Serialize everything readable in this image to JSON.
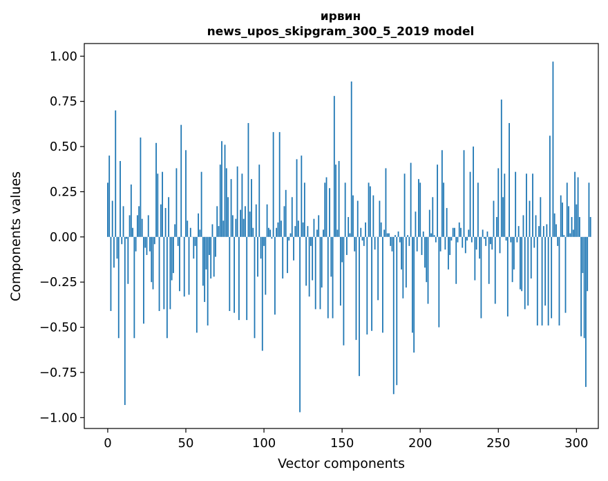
{
  "chart_data": {
    "type": "bar",
    "title": "ирвин",
    "subtitle": "news_upos_skipgram_300_5_2019 model",
    "xlabel": "Vector components",
    "ylabel": "Components values",
    "xlim": [
      -15,
      314
    ],
    "ylim": [
      -1.06,
      1.07
    ],
    "xticks": [
      0,
      50,
      100,
      150,
      200,
      250,
      300
    ],
    "yticks": [
      -1.0,
      -0.75,
      -0.5,
      -0.25,
      0.0,
      0.25,
      0.5,
      0.75,
      1.0
    ],
    "ytick_labels": [
      "−1.00",
      "−0.75",
      "−0.50",
      "−0.25",
      "0.00",
      "0.25",
      "0.50",
      "0.75",
      "1.00"
    ],
    "grid": false,
    "color": "#1f77b4",
    "values": [
      0.3,
      0.45,
      -0.41,
      0.2,
      -0.17,
      0.7,
      -0.12,
      -0.56,
      0.42,
      -0.04,
      0.17,
      -0.93,
      -0.01,
      -0.26,
      0.12,
      0.29,
      0.05,
      -0.56,
      -0.08,
      0.12,
      0.17,
      0.55,
      0.1,
      -0.48,
      -0.06,
      -0.1,
      0.12,
      -0.08,
      -0.25,
      -0.29,
      -0.04,
      0.52,
      0.35,
      -0.41,
      0.18,
      0.36,
      -0.4,
      0.16,
      -0.56,
      0.22,
      -0.4,
      -0.24,
      -0.2,
      0.07,
      0.38,
      -0.05,
      -0.3,
      0.62,
      0.0,
      -0.33,
      0.48,
      0.09,
      -0.32,
      0.05,
      0.0,
      -0.12,
      -0.05,
      -0.53,
      0.13,
      0.04,
      0.36,
      -0.27,
      -0.36,
      -0.18,
      -0.49,
      -0.1,
      -0.23,
      0.07,
      -0.22,
      -0.11,
      0.17,
      0.06,
      0.4,
      0.53,
      0.09,
      0.51,
      0.38,
      0.22,
      -0.41,
      0.32,
      0.12,
      -0.42,
      0.1,
      0.39,
      -0.46,
      0.15,
      0.35,
      0.1,
      0.17,
      -0.46,
      0.63,
      0.14,
      0.32,
      0.05,
      -0.56,
      0.18,
      -0.22,
      0.4,
      -0.12,
      -0.63,
      -0.05,
      -0.32,
      0.18,
      0.05,
      0.04,
      -0.01,
      0.58,
      -0.43,
      0.05,
      0.08,
      0.58,
      0.09,
      -0.23,
      0.17,
      0.26,
      -0.2,
      -0.02,
      0.02,
      0.22,
      -0.13,
      0.06,
      0.43,
      0.09,
      -0.97,
      0.45,
      0.08,
      0.3,
      -0.27,
      0.06,
      -0.33,
      -0.05,
      -0.24,
      0.1,
      -0.4,
      0.04,
      0.12,
      -0.4,
      -0.28,
      0.04,
      0.3,
      0.33,
      -0.45,
      0.27,
      -0.22,
      -0.45,
      0.78,
      0.4,
      0.04,
      0.42,
      -0.38,
      -0.14,
      -0.6,
      0.3,
      -0.1,
      0.11,
      0.02,
      0.86,
      0.23,
      -0.08,
      -0.57,
      0.2,
      -0.77,
      0.05,
      -0.02,
      -0.05,
      0.08,
      -0.54,
      0.3,
      0.28,
      -0.52,
      0.23,
      -0.07,
      0.0,
      -0.35,
      0.2,
      0.08,
      -0.53,
      0.04,
      0.38,
      0.02,
      0.02,
      -0.05,
      -0.08,
      -0.87,
      0.01,
      -0.82,
      0.03,
      -0.03,
      -0.18,
      -0.34,
      0.35,
      -0.28,
      0.01,
      -0.05,
      0.41,
      -0.53,
      -0.64,
      0.14,
      -0.08,
      0.32,
      0.3,
      -0.1,
      0.03,
      -0.17,
      -0.25,
      -0.37,
      0.15,
      0.02,
      0.22,
      0.01,
      -0.03,
      0.4,
      -0.5,
      -0.08,
      0.48,
      0.3,
      -0.07,
      0.16,
      -0.18,
      -0.1,
      -0.02,
      0.05,
      0.05,
      -0.26,
      -0.03,
      0.08,
      0.05,
      -0.06,
      0.48,
      -0.09,
      -0.02,
      0.04,
      0.36,
      -0.03,
      0.5,
      -0.24,
      -0.07,
      0.3,
      -0.12,
      -0.45,
      0.04,
      -0.01,
      -0.05,
      0.03,
      -0.26,
      -0.04,
      -0.07,
      0.2,
      -0.37,
      0.11,
      0.38,
      -0.09,
      0.76,
      0.22,
      0.35,
      -0.02,
      -0.44,
      0.63,
      -0.03,
      -0.25,
      -0.18,
      0.36,
      -0.03,
      0.06,
      -0.29,
      -0.3,
      0.12,
      -0.4,
      0.35,
      -0.38,
      0.2,
      -0.23,
      0.35,
      -0.06,
      0.12,
      -0.49,
      0.06,
      0.22,
      -0.49,
      0.06,
      -0.38,
      0.07,
      -0.49,
      0.56,
      -0.45,
      0.97,
      0.13,
      0.07,
      -0.05,
      -0.49,
      0.23,
      0.19,
      0.01,
      -0.42,
      0.3,
      0.17,
      0.02,
      0.11,
      0.04,
      0.36,
      0.18,
      0.33,
      0.11,
      -0.55,
      -0.2,
      -0.56,
      -0.83,
      -0.3,
      0.3,
      0.11
    ]
  }
}
